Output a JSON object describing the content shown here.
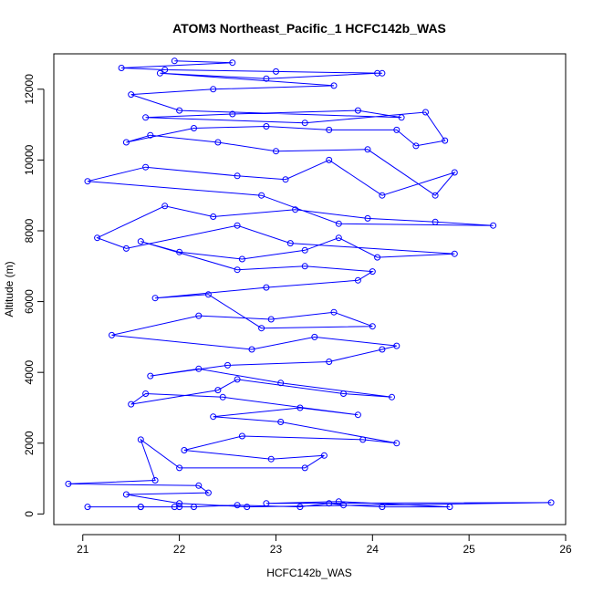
{
  "chart_data": {
    "type": "line",
    "title": "ATOM3 Northeast_Pacific_1 HCFC142b_WAS",
    "xlabel": "HCFC142b_WAS",
    "ylabel": "Altitude (m)",
    "xlim": [
      20.7,
      26.0
    ],
    "ylim": [
      -300,
      13000
    ],
    "x_ticks": [
      21,
      22,
      23,
      24,
      25,
      26
    ],
    "y_ticks": [
      0,
      2000,
      4000,
      6000,
      8000,
      10000,
      12000
    ],
    "x_tick_labels": [
      "21",
      "22",
      "23",
      "24",
      "25",
      "26"
    ],
    "y_tick_labels": [
      "0",
      "2000",
      "4000",
      "6000",
      "8000",
      "10000",
      "12000"
    ],
    "grid": false,
    "legend": "none",
    "series": [
      {
        "color": "#0000ff",
        "marker": "open-circle",
        "points": [
          [
            21.6,
            200
          ],
          [
            21.05,
            200
          ],
          [
            21.6,
            200
          ],
          [
            21.95,
            200
          ],
          [
            22.0,
            200
          ],
          [
            22.15,
            200
          ],
          [
            22.6,
            250
          ],
          [
            23.25,
            200
          ],
          [
            23.55,
            300
          ],
          [
            23.7,
            250
          ],
          [
            24.1,
            200
          ],
          [
            24.8,
            200
          ],
          [
            23.65,
            350
          ],
          [
            22.9,
            300
          ],
          [
            25.85,
            320
          ],
          [
            22.7,
            200
          ],
          [
            22.0,
            300
          ],
          [
            21.45,
            550
          ],
          [
            22.3,
            600
          ],
          [
            22.2,
            800
          ],
          [
            20.85,
            850
          ],
          [
            21.75,
            950
          ],
          [
            21.6,
            2100
          ],
          [
            22.0,
            1300
          ],
          [
            23.3,
            1300
          ],
          [
            23.5,
            1650
          ],
          [
            22.95,
            1550
          ],
          [
            22.05,
            1800
          ],
          [
            22.65,
            2200
          ],
          [
            23.9,
            2100
          ],
          [
            24.25,
            2000
          ],
          [
            23.05,
            2600
          ],
          [
            22.35,
            2750
          ],
          [
            23.25,
            3000
          ],
          [
            23.85,
            2800
          ],
          [
            22.45,
            3300
          ],
          [
            21.65,
            3400
          ],
          [
            21.5,
            3100
          ],
          [
            22.4,
            3500
          ],
          [
            22.6,
            3800
          ],
          [
            23.7,
            3400
          ],
          [
            24.2,
            3300
          ],
          [
            23.05,
            3700
          ],
          [
            22.2,
            4100
          ],
          [
            21.7,
            3900
          ],
          [
            22.5,
            4200
          ],
          [
            23.55,
            4300
          ],
          [
            24.1,
            4650
          ],
          [
            24.25,
            4750
          ],
          [
            23.4,
            5000
          ],
          [
            22.75,
            4650
          ],
          [
            21.3,
            5050
          ],
          [
            22.2,
            5600
          ],
          [
            22.95,
            5500
          ],
          [
            23.6,
            5700
          ],
          [
            24.0,
            5300
          ],
          [
            22.85,
            5250
          ],
          [
            22.3,
            6200
          ],
          [
            21.75,
            6100
          ],
          [
            22.9,
            6400
          ],
          [
            23.85,
            6600
          ],
          [
            24.0,
            6850
          ],
          [
            23.3,
            7000
          ],
          [
            22.6,
            6900
          ],
          [
            21.6,
            7700
          ],
          [
            22.0,
            7400
          ],
          [
            22.65,
            7200
          ],
          [
            23.3,
            7450
          ],
          [
            23.65,
            7800
          ],
          [
            24.05,
            7250
          ],
          [
            24.85,
            7350
          ],
          [
            23.15,
            7650
          ],
          [
            22.6,
            8150
          ],
          [
            21.45,
            7500
          ],
          [
            21.15,
            7800
          ],
          [
            21.85,
            8700
          ],
          [
            22.35,
            8400
          ],
          [
            23.2,
            8600
          ],
          [
            23.95,
            8350
          ],
          [
            24.65,
            8250
          ],
          [
            25.25,
            8150
          ],
          [
            23.65,
            8200
          ],
          [
            22.85,
            9000
          ],
          [
            21.05,
            9400
          ],
          [
            21.65,
            9800
          ],
          [
            22.6,
            9550
          ],
          [
            23.1,
            9450
          ],
          [
            23.55,
            10000
          ],
          [
            24.1,
            9000
          ],
          [
            24.85,
            9650
          ],
          [
            24.65,
            9000
          ],
          [
            23.95,
            10300
          ],
          [
            23.0,
            10250
          ],
          [
            22.4,
            10500
          ],
          [
            21.7,
            10700
          ],
          [
            21.45,
            10500
          ],
          [
            22.15,
            10900
          ],
          [
            22.9,
            10950
          ],
          [
            23.55,
            10850
          ],
          [
            24.25,
            10850
          ],
          [
            24.45,
            10400
          ],
          [
            24.75,
            10550
          ],
          [
            24.55,
            11350
          ],
          [
            23.3,
            11050
          ],
          [
            21.65,
            11200
          ],
          [
            22.55,
            11300
          ],
          [
            23.85,
            11400
          ],
          [
            24.3,
            11200
          ],
          [
            22.0,
            11400
          ],
          [
            21.5,
            11850
          ],
          [
            22.35,
            12000
          ],
          [
            23.6,
            12100
          ],
          [
            21.8,
            12450
          ],
          [
            22.9,
            12300
          ],
          [
            24.05,
            12450
          ],
          [
            24.1,
            12450
          ],
          [
            23.0,
            12500
          ],
          [
            21.85,
            12550
          ],
          [
            21.4,
            12600
          ],
          [
            22.55,
            12750
          ],
          [
            21.95,
            12800
          ]
        ]
      }
    ]
  }
}
